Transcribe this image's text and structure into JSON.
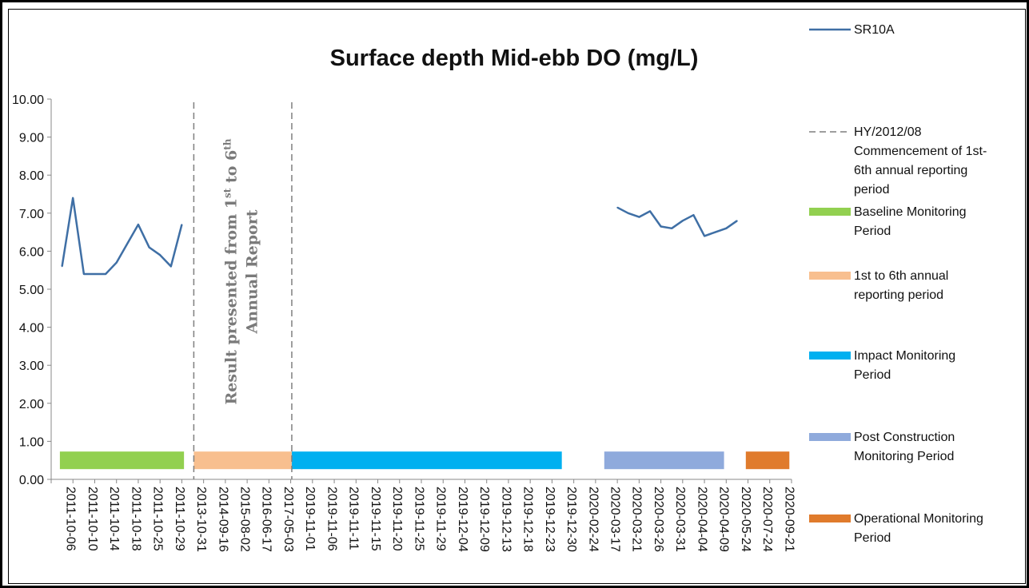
{
  "chart_data": {
    "type": "line",
    "title": "Surface depth Mid-ebb DO (mg/L)",
    "ylim": [
      0,
      10
    ],
    "y_ticks": [
      "0.00",
      "1.00",
      "2.00",
      "3.00",
      "4.00",
      "5.00",
      "6.00",
      "7.00",
      "8.00",
      "9.00",
      "10.00"
    ],
    "categories": [
      "2011-10-06",
      "2011-10-10",
      "2011-10-14",
      "2011-10-18",
      "2011-10-25",
      "2011-10-29",
      "2013-10-31",
      "2014-09-16",
      "2015-08-02",
      "2016-06-17",
      "2017-05-03",
      "2019-11-01",
      "2019-11-06",
      "2019-11-11",
      "2019-11-15",
      "2019-11-20",
      "2019-11-25",
      "2019-11-29",
      "2019-12-04",
      "2019-12-09",
      "2019-12-13",
      "2019-12-18",
      "2019-12-23",
      "2019-12-30",
      "2020-02-24",
      "2020-03-17",
      "2020-03-21",
      "2020-03-26",
      "2020-03-31",
      "2020-04-04",
      "2020-04-09",
      "2020-05-24",
      "2020-07-24",
      "2020-09-21"
    ],
    "series": [
      {
        "name": "SR10A",
        "color": "#3f6fa5",
        "segments": [
          {
            "points": [
              [
                0,
                5.6
              ],
              [
                0.5,
                7.4
              ],
              [
                1,
                5.4
              ],
              [
                1.5,
                5.4
              ],
              [
                2,
                5.4
              ],
              [
                2.5,
                5.7
              ],
              [
                3,
                6.2
              ],
              [
                3.5,
                6.7
              ],
              [
                4,
                6.1
              ],
              [
                4.5,
                5.9
              ],
              [
                5,
                5.6
              ],
              [
                5.5,
                6.7
              ]
            ]
          },
          {
            "points": [
              [
                25.5,
                7.15
              ],
              [
                26,
                7.0
              ],
              [
                26.5,
                6.9
              ],
              [
                27,
                7.05
              ],
              [
                27.5,
                6.65
              ],
              [
                28,
                6.6
              ],
              [
                28.5,
                6.8
              ],
              [
                29,
                6.95
              ],
              [
                29.5,
                6.4
              ],
              [
                30,
                6.5
              ],
              [
                30.5,
                6.6
              ],
              [
                31,
                6.8
              ]
            ]
          }
        ]
      }
    ],
    "periods": [
      {
        "name": "Baseline Monitoring Period",
        "color": "#92d050",
        "from": -0.1,
        "to": 5.6,
        "value": 0.5
      },
      {
        "name": "1st to 6th annual reporting period",
        "color": "#f8bf8f",
        "from": 6.05,
        "to": 10.55,
        "value": 0.5
      },
      {
        "name": "Impact Monitoring Period",
        "color": "#00b0f0",
        "from": 10.55,
        "to": 22.95,
        "value": 0.5
      },
      {
        "name": "Post Construction Monitoring Period",
        "color": "#8faadc",
        "from": 24.9,
        "to": 30.4,
        "value": 0.5
      },
      {
        "name": "Operational Monitoring Period",
        "color": "#e07b2c",
        "from": 31.4,
        "to": 33.4,
        "value": 0.5
      }
    ],
    "vlines": [
      {
        "name": "HY/2012/08 Commencement of 1st-6th annual reporting period",
        "color": "#7f7f7f",
        "at": [
          6.05,
          10.55
        ]
      }
    ],
    "annotation": {
      "line1": "Result presented from 1",
      "sup1": "st",
      "mid": " to 6",
      "sup2": "th",
      "line2": "Annual Report"
    },
    "legend": {
      "placement": "right",
      "entries": [
        {
          "label_lines": [
            "SR10A"
          ],
          "style": "line",
          "color": "#3f6fa5"
        },
        {
          "label_lines": [
            "HY/2012/08",
            "Commencement of 1st-",
            "6th annual reporting",
            "period"
          ],
          "style": "dash",
          "color": "#7f7f7f"
        },
        {
          "label_lines": [
            "Baseline Monitoring",
            "Period"
          ],
          "style": "bar",
          "color": "#92d050"
        },
        {
          "label_lines": [
            "1st to 6th annual",
            "reporting period"
          ],
          "style": "bar",
          "color": "#f8bf8f"
        },
        {
          "label_lines": [
            "Impact Monitoring",
            "Period"
          ],
          "style": "bar",
          "color": "#00b0f0"
        },
        {
          "label_lines": [
            "Post Construction",
            "Monitoring Period"
          ],
          "style": "bar",
          "color": "#8faadc"
        },
        {
          "label_lines": [
            "Operational Monitoring",
            "Period"
          ],
          "style": "bar",
          "color": "#e07b2c"
        }
      ]
    }
  }
}
